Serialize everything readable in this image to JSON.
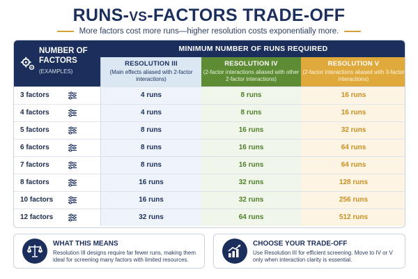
{
  "header": {
    "title_a": "RUNS-",
    "title_vs": "VS",
    "title_b": "-FACTORS TRADE-OFF",
    "subtitle": "More factors cost more runs—higher resolution costs exponentially more."
  },
  "table": {
    "factors_header": "NUMBER OF FACTORS",
    "factors_sub": "(EXAMPLES)",
    "runs_header": "MINIMUM NUMBER OF RUNS REQUIRED",
    "resolutions": [
      {
        "title": "RESOLUTION III",
        "desc": "(Main effects aliased with 2-factor interactions)"
      },
      {
        "title": "RESOLUTION IV",
        "desc": "(2-factor interactions aliased with other 2-factor interactions)"
      },
      {
        "title": "RESOLUTION V",
        "desc": "(2-factor interactions aliased with 3-factor interactions)"
      }
    ],
    "rows": [
      {
        "factors": "3 factors",
        "r3": "4 runs",
        "r4": "8 runs",
        "r5": "16 runs"
      },
      {
        "factors": "4 factors",
        "r3": "4 runs",
        "r4": "8 runs",
        "r5": "16 runs"
      },
      {
        "factors": "5 factors",
        "r3": "8 runs",
        "r4": "16 runs",
        "r5": "32 runs"
      },
      {
        "factors": "6 factors",
        "r3": "8 runs",
        "r4": "16 runs",
        "r5": "64 runs"
      },
      {
        "factors": "7 factors",
        "r3": "8 runs",
        "r4": "16 runs",
        "r5": "64 runs"
      },
      {
        "factors": "8 factors",
        "r3": "16 runs",
        "r4": "32 runs",
        "r5": "128 runs"
      },
      {
        "factors": "10 factors",
        "r3": "16 runs",
        "r4": "32 runs",
        "r5": "256 runs"
      },
      {
        "factors": "12 factors",
        "r3": "32 runs",
        "r4": "64 runs",
        "r5": "512 runs"
      }
    ]
  },
  "panels": [
    {
      "icon": "scales-icon",
      "title": "WHAT THIS MEANS",
      "body": "Resolution III designs require far fewer runs, making them ideal for screening many factors with limited resources."
    },
    {
      "icon": "growth-chart-icon",
      "title": "CHOOSE YOUR TRADE-OFF",
      "body": "Use Resolution III for efficient screening. Move to IV or V only when interaction clarity is essential."
    }
  ],
  "colors": {
    "navy": "#1c2f5c",
    "green": "#5d8c35",
    "gold": "#e0a93b",
    "light_blue": "#dbe7f3"
  }
}
